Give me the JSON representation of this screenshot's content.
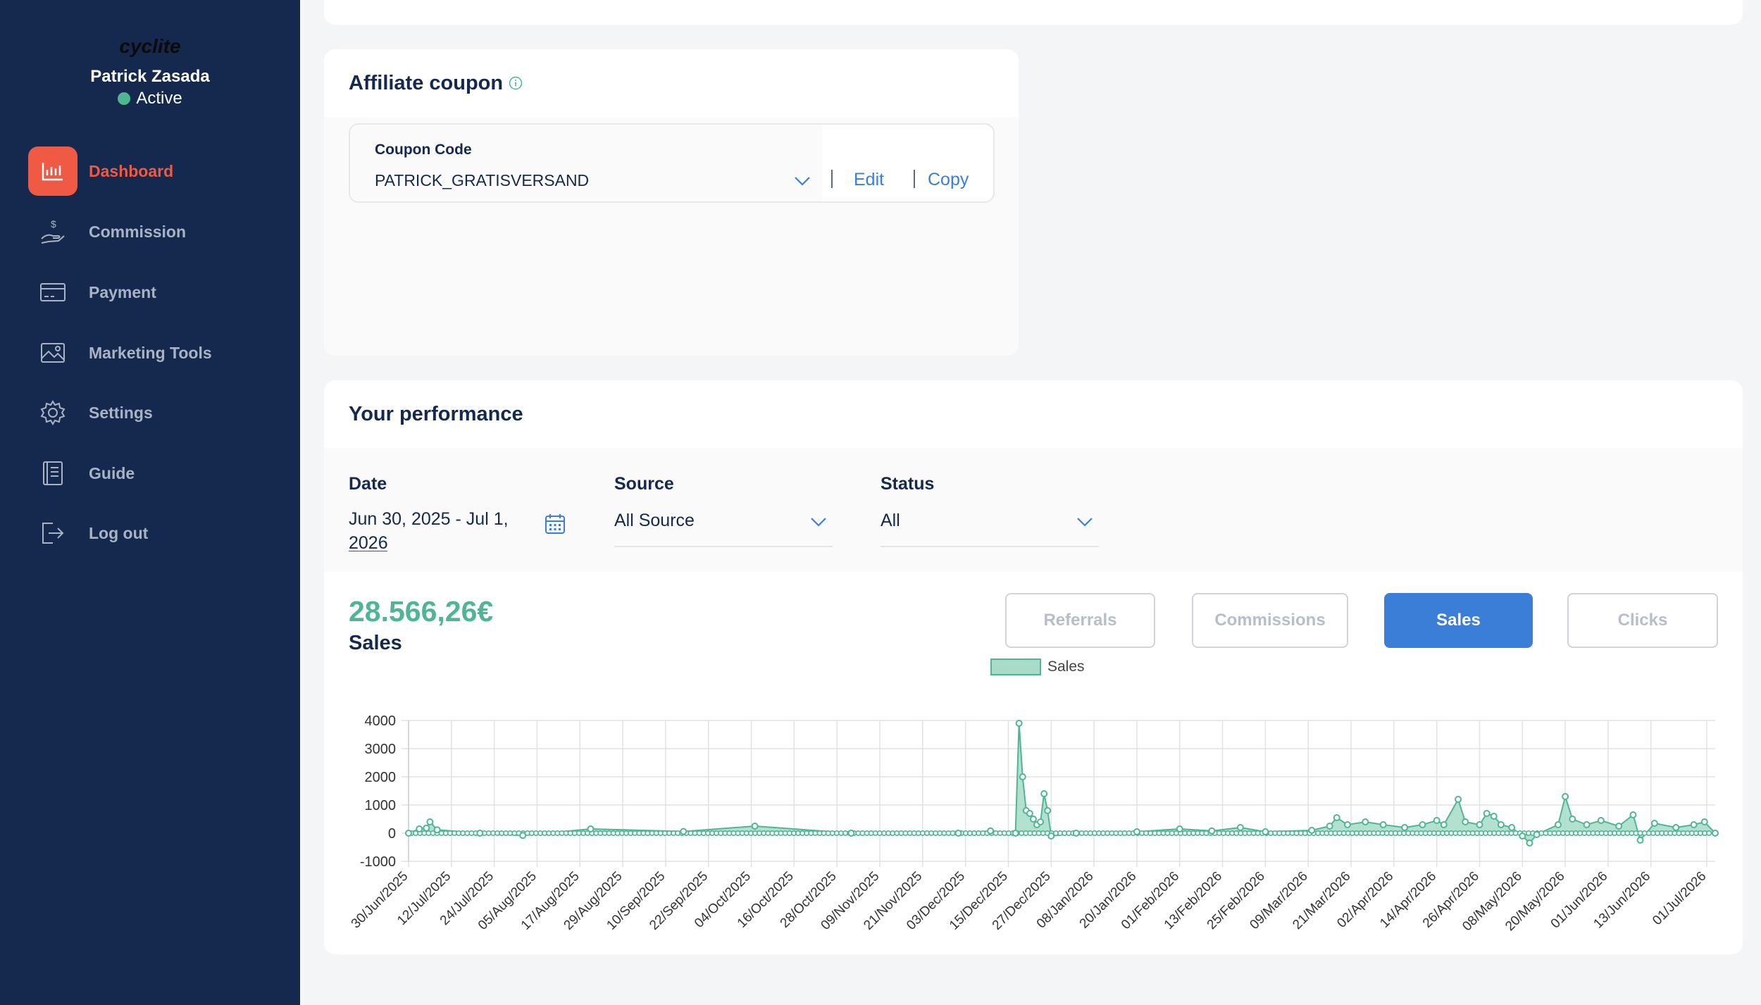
{
  "sidebar": {
    "brand": "cyclite",
    "user_name": "Patrick Zasada",
    "user_status": "Active",
    "items": [
      {
        "label": "Dashboard",
        "icon": "bar-chart-icon",
        "active": true
      },
      {
        "label": "Commission",
        "icon": "hand-dollar-icon",
        "active": false
      },
      {
        "label": "Payment",
        "icon": "credit-card-icon",
        "active": false
      },
      {
        "label": "Marketing Tools",
        "icon": "image-icon",
        "active": false
      },
      {
        "label": "Settings",
        "icon": "gear-icon",
        "active": false
      },
      {
        "label": "Guide",
        "icon": "book-icon",
        "active": false
      },
      {
        "label": "Log out",
        "icon": "logout-icon",
        "active": false
      }
    ]
  },
  "coupon": {
    "title": "Affiliate coupon",
    "label": "Coupon Code",
    "value": "PATRICK_GRATISVERSAND",
    "edit_label": "Edit",
    "copy_label": "Copy"
  },
  "performance": {
    "title": "Your performance",
    "filters": {
      "date_label": "Date",
      "date_value": "Jun 30, 2025 - Jul 1, 2026",
      "source_label": "Source",
      "source_value": "All Source",
      "status_label": "Status",
      "status_value": "All"
    },
    "total_value": "28.566,26€",
    "total_label": "Sales",
    "tabs": [
      {
        "label": "Referrals",
        "active": false
      },
      {
        "label": "Commissions",
        "active": false
      },
      {
        "label": "Sales",
        "active": true
      },
      {
        "label": "Clicks",
        "active": false
      }
    ]
  },
  "colors": {
    "sidebar_bg": "#14294d",
    "accent_red": "#ef5a45",
    "accent_green": "#4fb592",
    "accent_blue": "#3b7ed8"
  },
  "chart_data": {
    "type": "area",
    "legend": [
      "Sales"
    ],
    "legend_position": "top-center",
    "grid": true,
    "ylim": [
      -1000,
      4000
    ],
    "yticks": [
      4000,
      3000,
      2000,
      1000,
      0,
      -1000
    ],
    "x_tick_labels": [
      "30/Jun/2025",
      "12/Jul/2025",
      "24/Jul/2025",
      "05/Aug/2025",
      "17/Aug/2025",
      "29/Aug/2025",
      "10/Sep/2025",
      "22/Sep/2025",
      "04/Oct/2025",
      "16/Oct/2025",
      "28/Oct/2025",
      "09/Nov/2025",
      "21/Nov/2025",
      "03/Dec/2025",
      "15/Dec/2025",
      "27/Dec/2025",
      "08/Jan/2026",
      "20/Jan/2026",
      "01/Feb/2026",
      "13/Feb/2026",
      "25/Feb/2026",
      "09/Mar/2026",
      "21/Mar/2026",
      "02/Apr/2026",
      "14/Apr/2026",
      "26/Apr/2026",
      "08/May/2026",
      "20/May/2026",
      "01/Jun/2026",
      "13/Jun/2026",
      "01/Jul/2026"
    ],
    "series": [
      {
        "name": "Sales",
        "color": "#4fb592",
        "points": [
          [
            "2025-06-30",
            0
          ],
          [
            "2025-07-03",
            150
          ],
          [
            "2025-07-05",
            180
          ],
          [
            "2025-07-06",
            400
          ],
          [
            "2025-07-08",
            120
          ],
          [
            "2025-07-20",
            0
          ],
          [
            "2025-08-01",
            -80
          ],
          [
            "2025-08-20",
            150
          ],
          [
            "2025-09-15",
            60
          ],
          [
            "2025-10-05",
            250
          ],
          [
            "2025-11-01",
            0
          ],
          [
            "2025-12-01",
            0
          ],
          [
            "2025-12-10",
            80
          ],
          [
            "2025-12-17",
            0
          ],
          [
            "2025-12-18",
            3900
          ],
          [
            "2025-12-19",
            2000
          ],
          [
            "2025-12-20",
            800
          ],
          [
            "2025-12-21",
            700
          ],
          [
            "2025-12-22",
            500
          ],
          [
            "2025-12-23",
            300
          ],
          [
            "2025-12-24",
            400
          ],
          [
            "2025-12-25",
            1400
          ],
          [
            "2025-12-26",
            800
          ],
          [
            "2025-12-27",
            -100
          ],
          [
            "2026-01-03",
            0
          ],
          [
            "2026-01-20",
            50
          ],
          [
            "2026-02-01",
            150
          ],
          [
            "2026-02-10",
            80
          ],
          [
            "2026-02-18",
            200
          ],
          [
            "2026-02-25",
            50
          ],
          [
            "2026-03-10",
            100
          ],
          [
            "2026-03-15",
            250
          ],
          [
            "2026-03-17",
            550
          ],
          [
            "2026-03-20",
            300
          ],
          [
            "2026-03-25",
            400
          ],
          [
            "2026-03-30",
            300
          ],
          [
            "2026-04-05",
            200
          ],
          [
            "2026-04-10",
            300
          ],
          [
            "2026-04-14",
            450
          ],
          [
            "2026-04-16",
            300
          ],
          [
            "2026-04-20",
            1200
          ],
          [
            "2026-04-22",
            400
          ],
          [
            "2026-04-26",
            300
          ],
          [
            "2026-04-28",
            700
          ],
          [
            "2026-04-30",
            600
          ],
          [
            "2026-05-02",
            300
          ],
          [
            "2026-05-05",
            200
          ],
          [
            "2026-05-08",
            -100
          ],
          [
            "2026-05-10",
            -350
          ],
          [
            "2026-05-12",
            -50
          ],
          [
            "2026-05-18",
            300
          ],
          [
            "2026-05-20",
            1300
          ],
          [
            "2026-05-22",
            500
          ],
          [
            "2026-05-26",
            300
          ],
          [
            "2026-05-30",
            450
          ],
          [
            "2026-06-04",
            250
          ],
          [
            "2026-06-08",
            650
          ],
          [
            "2026-06-10",
            -250
          ],
          [
            "2026-06-14",
            350
          ],
          [
            "2026-06-20",
            200
          ],
          [
            "2026-06-25",
            300
          ],
          [
            "2026-06-28",
            400
          ],
          [
            "2026-07-01",
            0
          ]
        ]
      }
    ]
  }
}
